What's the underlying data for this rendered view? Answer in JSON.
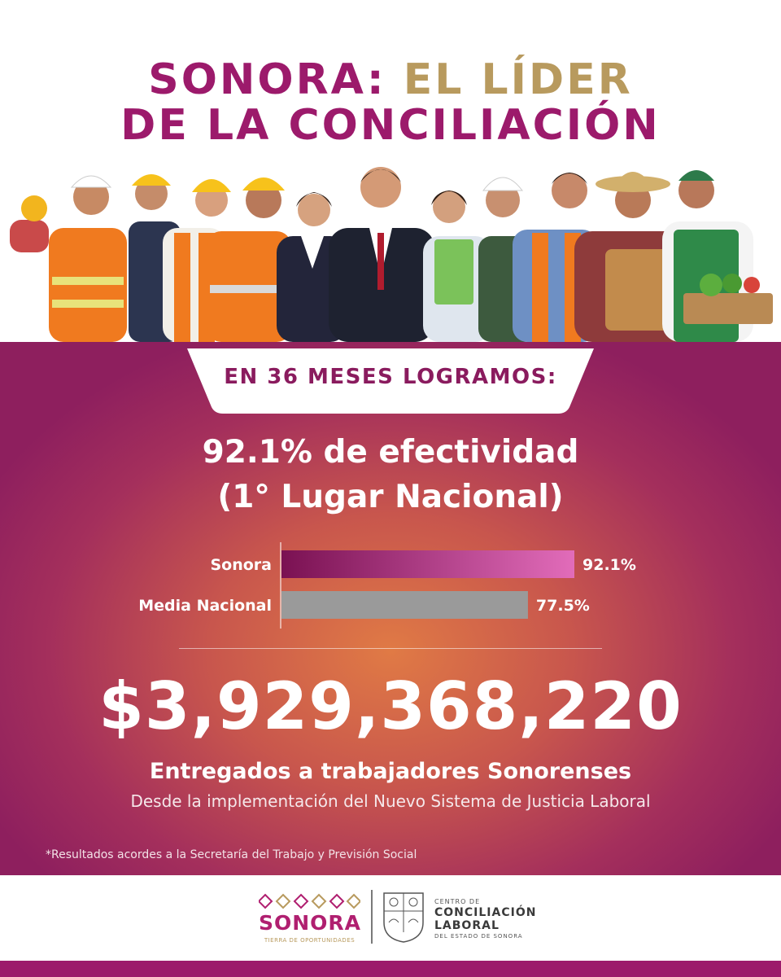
{
  "header": {
    "title_line1_part1": "SONORA: ",
    "title_line1_part2": "EL LÍDER",
    "title_line2": "DE LA CONCILIACIÓN"
  },
  "badge": {
    "text": "EN 36 MESES LOGRAMOS:"
  },
  "headline": {
    "line1": "92.1% de efectividad",
    "line2": "(1° Lugar Nacional)"
  },
  "chart_data": {
    "type": "bar",
    "orientation": "horizontal",
    "categories": [
      "Sonora",
      "Media Nacional"
    ],
    "values": [
      92.1,
      77.5
    ],
    "data_labels": [
      "92.1%",
      "77.5%"
    ],
    "xlim": [
      0,
      100
    ],
    "grid": false,
    "colors": [
      "#c2307f",
      "#9a9a9a"
    ]
  },
  "amount": {
    "value": "$3,929,368,220"
  },
  "subtitle": {
    "line1": "Entregados a trabajadores Sonorenses",
    "line2": "Desde la implementación del Nuevo Sistema de Justicia Laboral"
  },
  "footnote": "*Resultados acordes a la Secretaría del Trabajo y Previsión Social",
  "footer": {
    "sonora_logo_text": "SONORA",
    "sonora_tagline": "TIERRA DE OPORTUNIDADES",
    "ccl_line1": "CENTRO DE",
    "ccl_line2a": "CONCILIACIÓN",
    "ccl_line2b": "LABORAL",
    "ccl_line3": "DEL ESTADO DE SONORA",
    "crest_label": "ESTADO DE SONORA"
  },
  "colors": {
    "magenta": "#9c1a6b",
    "gold": "#b89a5e",
    "bar_gray": "#9a9a9a"
  }
}
